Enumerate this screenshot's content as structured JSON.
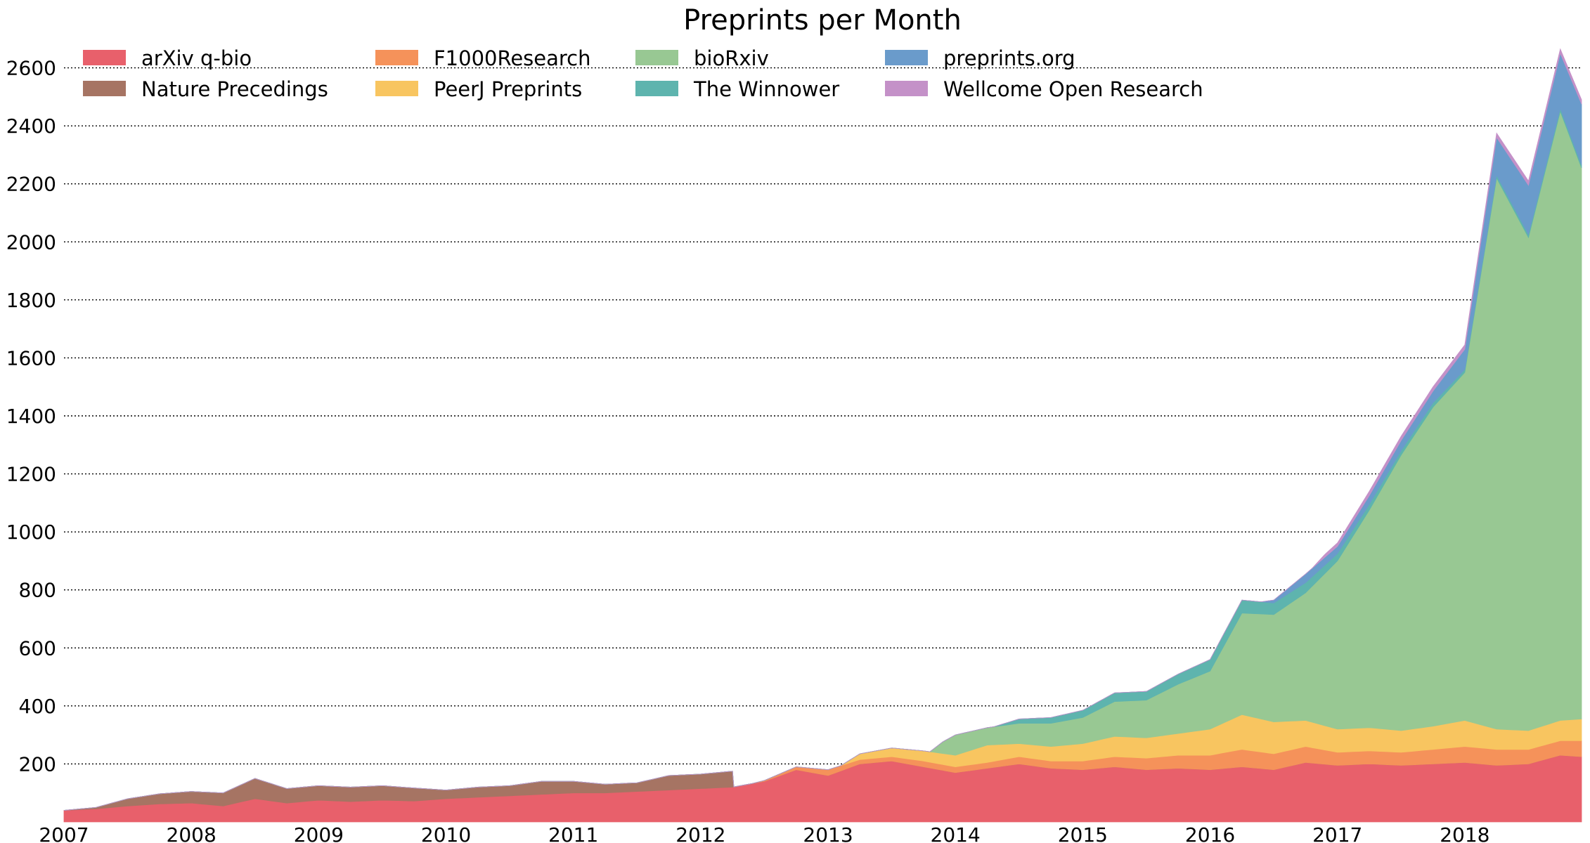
{
  "chart_data": {
    "type": "area",
    "stacked": true,
    "title": "Preprints per Month",
    "xlabel": "",
    "ylabel": "",
    "xlim": [
      2007.0,
      2018.917
    ],
    "ylim": [
      0,
      2800
    ],
    "yticks": [
      200,
      400,
      600,
      800,
      1000,
      1200,
      1400,
      1600,
      1800,
      2000,
      2200,
      2400,
      2600
    ],
    "ytick_labels": [
      "200",
      "400",
      "600",
      "800",
      "1000",
      "1200",
      "1400",
      "1600",
      "1800",
      "2000",
      "2200",
      "2400",
      "2600"
    ],
    "xticks": [
      2007,
      2008,
      2009,
      2010,
      2011,
      2012,
      2013,
      2014,
      2015,
      2016,
      2017,
      2018
    ],
    "xtick_labels": [
      "2007",
      "2008",
      "2009",
      "2010",
      "2011",
      "2012",
      "2013",
      "2014",
      "2015",
      "2016",
      "2017",
      "2018"
    ],
    "grid": "horizontal dotted",
    "legend_position": "top-left",
    "series": [
      {
        "name": "arXiv q-bio",
        "color": "#e8606b",
        "points": [
          [
            2007.0,
            40
          ],
          [
            2007.25,
            45
          ],
          [
            2007.5,
            55
          ],
          [
            2007.75,
            62
          ],
          [
            2008.0,
            65
          ],
          [
            2008.25,
            55
          ],
          [
            2008.5,
            80
          ],
          [
            2008.75,
            65
          ],
          [
            2009.0,
            75
          ],
          [
            2009.25,
            70
          ],
          [
            2009.5,
            75
          ],
          [
            2009.75,
            72
          ],
          [
            2010.0,
            80
          ],
          [
            2010.25,
            85
          ],
          [
            2010.5,
            90
          ],
          [
            2010.75,
            95
          ],
          [
            2011.0,
            100
          ],
          [
            2011.25,
            100
          ],
          [
            2011.5,
            105
          ],
          [
            2011.75,
            110
          ],
          [
            2012.0,
            115
          ],
          [
            2012.25,
            120
          ],
          [
            2012.5,
            140
          ],
          [
            2012.75,
            180
          ],
          [
            2013.0,
            160
          ],
          [
            2013.25,
            200
          ],
          [
            2013.5,
            210
          ],
          [
            2013.75,
            190
          ],
          [
            2014.0,
            170
          ],
          [
            2014.25,
            185
          ],
          [
            2014.5,
            200
          ],
          [
            2014.75,
            185
          ],
          [
            2015.0,
            180
          ],
          [
            2015.25,
            190
          ],
          [
            2015.5,
            180
          ],
          [
            2015.75,
            185
          ],
          [
            2016.0,
            180
          ],
          [
            2016.25,
            190
          ],
          [
            2016.5,
            180
          ],
          [
            2016.75,
            205
          ],
          [
            2017.0,
            195
          ],
          [
            2017.25,
            200
          ],
          [
            2017.5,
            195
          ],
          [
            2017.75,
            200
          ],
          [
            2018.0,
            205
          ],
          [
            2018.25,
            195
          ],
          [
            2018.5,
            200
          ],
          [
            2018.75,
            230
          ],
          [
            2018.917,
            225
          ]
        ]
      },
      {
        "name": "Nature Precedings",
        "color": "#a67463",
        "points": [
          [
            2007.0,
            0
          ],
          [
            2007.25,
            5
          ],
          [
            2007.5,
            25
          ],
          [
            2007.75,
            35
          ],
          [
            2008.0,
            40
          ],
          [
            2008.25,
            45
          ],
          [
            2008.5,
            70
          ],
          [
            2008.75,
            50
          ],
          [
            2009.0,
            50
          ],
          [
            2009.25,
            50
          ],
          [
            2009.5,
            50
          ],
          [
            2009.75,
            45
          ],
          [
            2010.0,
            30
          ],
          [
            2010.25,
            35
          ],
          [
            2010.5,
            35
          ],
          [
            2010.75,
            45
          ],
          [
            2011.0,
            40
          ],
          [
            2011.25,
            30
          ],
          [
            2011.5,
            30
          ],
          [
            2011.75,
            50
          ],
          [
            2012.0,
            50
          ],
          [
            2012.25,
            55
          ],
          [
            2012.26,
            0
          ],
          [
            2018.917,
            0
          ]
        ]
      },
      {
        "name": "F1000Research",
        "color": "#f5925a",
        "points": [
          [
            2007.0,
            0
          ],
          [
            2012.4,
            0
          ],
          [
            2012.75,
            10
          ],
          [
            2013.0,
            20
          ],
          [
            2013.25,
            15
          ],
          [
            2013.5,
            15
          ],
          [
            2013.75,
            20
          ],
          [
            2014.0,
            20
          ],
          [
            2014.25,
            20
          ],
          [
            2014.5,
            25
          ],
          [
            2014.75,
            25
          ],
          [
            2015.0,
            30
          ],
          [
            2015.25,
            35
          ],
          [
            2015.5,
            40
          ],
          [
            2015.75,
            45
          ],
          [
            2016.0,
            50
          ],
          [
            2016.25,
            60
          ],
          [
            2016.5,
            55
          ],
          [
            2016.75,
            55
          ],
          [
            2017.0,
            45
          ],
          [
            2017.25,
            45
          ],
          [
            2017.5,
            45
          ],
          [
            2017.75,
            50
          ],
          [
            2018.0,
            55
          ],
          [
            2018.25,
            55
          ],
          [
            2018.5,
            50
          ],
          [
            2018.75,
            50
          ],
          [
            2018.917,
            55
          ]
        ]
      },
      {
        "name": "PeerJ Preprints",
        "color": "#f8c560",
        "points": [
          [
            2007.0,
            0
          ],
          [
            2013.1,
            0
          ],
          [
            2013.25,
            20
          ],
          [
            2013.5,
            30
          ],
          [
            2013.75,
            35
          ],
          [
            2014.0,
            40
          ],
          [
            2014.25,
            60
          ],
          [
            2014.5,
            45
          ],
          [
            2014.75,
            50
          ],
          [
            2015.0,
            60
          ],
          [
            2015.25,
            70
          ],
          [
            2015.5,
            70
          ],
          [
            2015.75,
            75
          ],
          [
            2016.0,
            90
          ],
          [
            2016.25,
            120
          ],
          [
            2016.5,
            110
          ],
          [
            2016.75,
            90
          ],
          [
            2017.0,
            80
          ],
          [
            2017.25,
            80
          ],
          [
            2017.5,
            75
          ],
          [
            2017.75,
            80
          ],
          [
            2018.0,
            90
          ],
          [
            2018.25,
            70
          ],
          [
            2018.5,
            65
          ],
          [
            2018.75,
            70
          ],
          [
            2018.917,
            75
          ]
        ]
      },
      {
        "name": "bioRxiv",
        "color": "#98c893",
        "points": [
          [
            2007.0,
            0
          ],
          [
            2013.8,
            0
          ],
          [
            2013.9,
            40
          ],
          [
            2014.0,
            70
          ],
          [
            2014.25,
            60
          ],
          [
            2014.5,
            70
          ],
          [
            2014.75,
            80
          ],
          [
            2015.0,
            90
          ],
          [
            2015.25,
            120
          ],
          [
            2015.5,
            130
          ],
          [
            2015.75,
            170
          ],
          [
            2016.0,
            200
          ],
          [
            2016.25,
            350
          ],
          [
            2016.5,
            370
          ],
          [
            2016.75,
            440
          ],
          [
            2017.0,
            580
          ],
          [
            2017.25,
            750
          ],
          [
            2017.5,
            950
          ],
          [
            2017.75,
            1100
          ],
          [
            2018.0,
            1200
          ],
          [
            2018.25,
            1900
          ],
          [
            2018.5,
            1700
          ],
          [
            2018.75,
            2100
          ],
          [
            2018.917,
            1900
          ]
        ]
      },
      {
        "name": "The Winnower",
        "color": "#5eb4ae",
        "points": [
          [
            2007.0,
            0
          ],
          [
            2014.3,
            0
          ],
          [
            2014.5,
            15
          ],
          [
            2014.75,
            20
          ],
          [
            2015.0,
            25
          ],
          [
            2015.25,
            30
          ],
          [
            2015.5,
            30
          ],
          [
            2015.75,
            35
          ],
          [
            2016.0,
            40
          ],
          [
            2016.25,
            45
          ],
          [
            2016.5,
            40
          ],
          [
            2016.75,
            35
          ],
          [
            2017.0,
            25
          ],
          [
            2017.25,
            20
          ],
          [
            2017.5,
            15
          ],
          [
            2017.75,
            15
          ],
          [
            2018.0,
            10
          ],
          [
            2018.25,
            10
          ],
          [
            2018.5,
            10
          ],
          [
            2018.75,
            10
          ],
          [
            2018.917,
            10
          ]
        ]
      },
      {
        "name": "preprints.org",
        "color": "#6a9bcb",
        "points": [
          [
            2007.0,
            0
          ],
          [
            2016.4,
            0
          ],
          [
            2016.5,
            10
          ],
          [
            2016.75,
            30
          ],
          [
            2017.0,
            25
          ],
          [
            2017.25,
            30
          ],
          [
            2017.5,
            35
          ],
          [
            2017.75,
            40
          ],
          [
            2018.0,
            70
          ],
          [
            2018.25,
            130
          ],
          [
            2018.5,
            170
          ],
          [
            2018.75,
            190
          ],
          [
            2018.917,
            210
          ]
        ]
      },
      {
        "name": "Wellcome Open Research",
        "color": "#c491c8",
        "points": [
          [
            2007.0,
            0
          ],
          [
            2016.8,
            0
          ],
          [
            2016.9,
            10
          ],
          [
            2017.0,
            12
          ],
          [
            2017.25,
            15
          ],
          [
            2017.5,
            15
          ],
          [
            2017.75,
            15
          ],
          [
            2018.0,
            15
          ],
          [
            2018.25,
            15
          ],
          [
            2018.5,
            15
          ],
          [
            2018.75,
            15
          ],
          [
            2018.917,
            15
          ]
        ]
      }
    ]
  }
}
